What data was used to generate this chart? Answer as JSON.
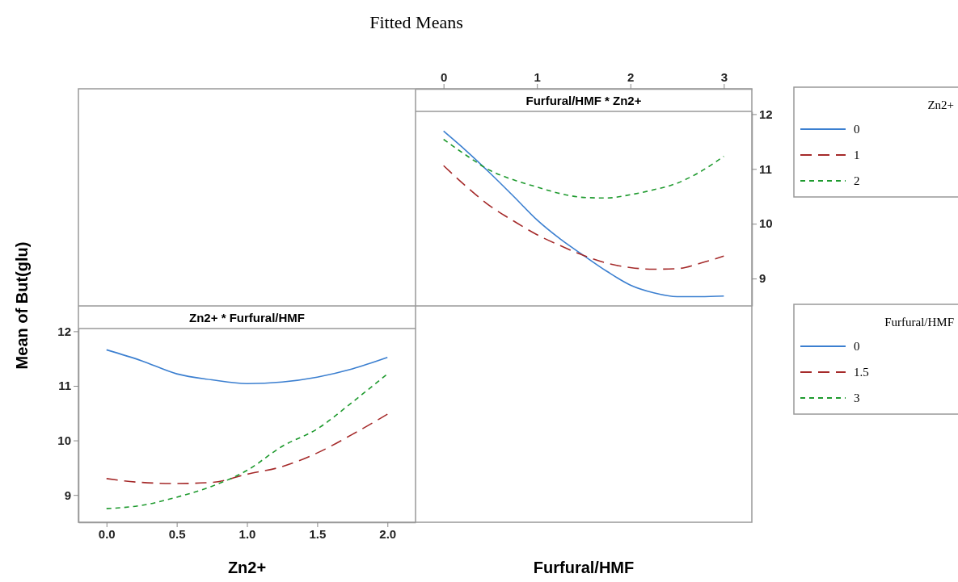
{
  "chart_data": [
    {
      "type": "line",
      "title": "Fitted Means",
      "subtitle": "Furfural/HMF * Zn2+",
      "xlabel": "Furfural/HMF",
      "legend_title": "Zn2+",
      "legend": "right",
      "x": [
        0,
        0.25,
        0.5,
        0.75,
        1,
        1.25,
        1.5,
        1.75,
        2,
        2.25,
        2.5,
        2.75,
        3
      ],
      "xlim": [
        -0.3,
        3.3
      ],
      "xticks": [
        0,
        1,
        2,
        3
      ],
      "ylim": [
        8.5,
        12.05
      ],
      "yticks": [
        9,
        10,
        11,
        12
      ],
      "series": [
        {
          "name": "0",
          "color": "#3b7fd0",
          "line_style": "solid",
          "values": [
            11.69,
            11.32,
            10.92,
            10.5,
            10.07,
            9.72,
            9.42,
            9.13,
            8.88,
            8.74,
            8.67,
            8.67,
            8.68
          ]
        },
        {
          "name": "1",
          "color": "#a52a2a",
          "line_style": "dashed",
          "values": [
            11.06,
            10.67,
            10.32,
            10.05,
            9.8,
            9.6,
            9.42,
            9.28,
            9.2,
            9.17,
            9.18,
            9.28,
            9.41
          ]
        },
        {
          "name": "2",
          "color": "#1e9a2e",
          "line_style": "dotted",
          "values": [
            11.54,
            11.24,
            10.97,
            10.8,
            10.67,
            10.55,
            10.48,
            10.47,
            10.53,
            10.62,
            10.74,
            10.95,
            11.23
          ]
        }
      ]
    },
    {
      "type": "line",
      "subtitle": "Zn2+ * Furfural/HMF",
      "xlabel": "Zn2+",
      "ylabel": "Mean of But(glu)",
      "legend_title": "Furfural/HMF",
      "legend": "right",
      "x": [
        0,
        0.25,
        0.5,
        0.75,
        1,
        1.25,
        1.5,
        1.75,
        2
      ],
      "xlim": [
        -0.2,
        2.2
      ],
      "xticks": [
        {
          "value": 0,
          "label": "0.0"
        },
        {
          "value": 0.5,
          "label": "0.5"
        },
        {
          "value": 1,
          "label": "1.0"
        },
        {
          "value": 1.5,
          "label": "1.5"
        },
        {
          "value": 2,
          "label": "2.0"
        }
      ],
      "ylim": [
        8.5,
        12.05
      ],
      "yticks": [
        9,
        10,
        11,
        12
      ],
      "series": [
        {
          "name": "0",
          "color": "#3b7fd0",
          "line_style": "solid",
          "values": [
            11.66,
            11.46,
            11.22,
            11.11,
            11.04,
            11.07,
            11.16,
            11.31,
            11.52
          ]
        },
        {
          "name": "1.5",
          "color": "#a52a2a",
          "line_style": "dashed",
          "values": [
            9.3,
            9.23,
            9.21,
            9.23,
            9.38,
            9.52,
            9.77,
            10.11,
            10.48
          ]
        },
        {
          "name": "3",
          "color": "#1e9a2e",
          "line_style": "dotted",
          "values": [
            8.75,
            8.81,
            8.96,
            9.16,
            9.45,
            9.89,
            10.21,
            10.7,
            11.22
          ]
        }
      ]
    }
  ]
}
